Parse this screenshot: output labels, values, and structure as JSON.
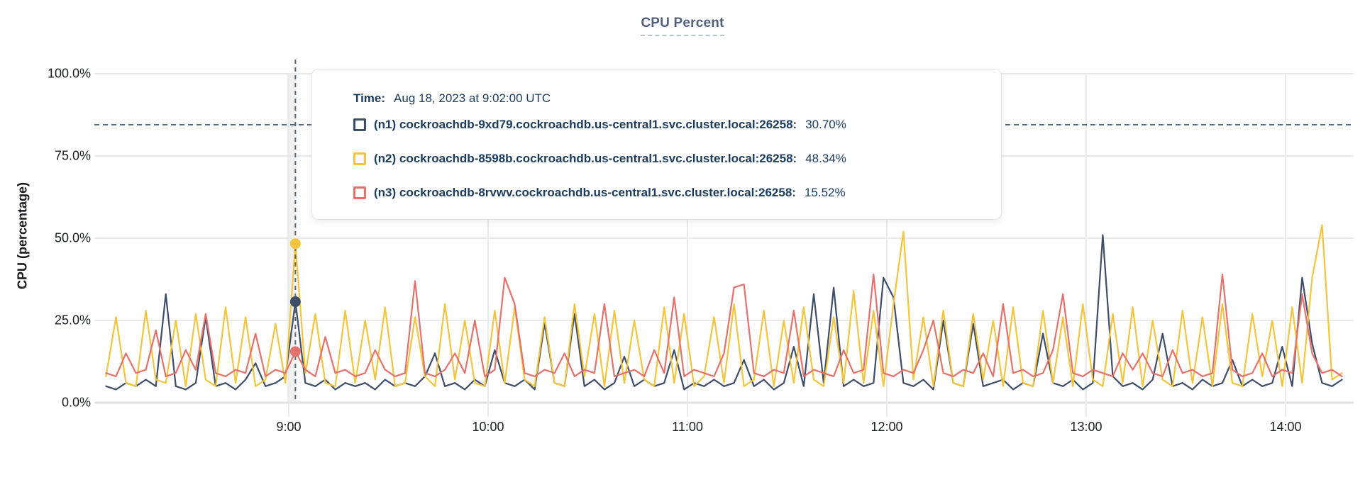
{
  "title": "CPU Percent",
  "y_axis": {
    "label": "CPU (percentage)"
  },
  "tooltip": {
    "time_label": "Time:",
    "time_value": "Aug 18, 2023 at 9:02:00 UTC",
    "series": [
      {
        "label": "(n1) cockroachdb-9xd79.cockroachdb.us-central1.svc.cluster.local:26258:",
        "value": "30.70%",
        "color": "#3e4e68"
      },
      {
        "label": "(n2) cockroachdb-8598b.cockroachdb.us-central1.svc.cluster.local:26258:",
        "value": "48.34%",
        "color": "#f2c53d"
      },
      {
        "label": "(n3) cockroachdb-8rvwv.cockroachdb.us-central1.svc.cluster.local:26258:",
        "value": "15.52%",
        "color": "#e5716c"
      }
    ]
  },
  "colors": {
    "grid": "#eaeaec",
    "axis_line": "#e2e2e4",
    "dashed_guides": "#55677a",
    "hover_band": "#e6e6e8",
    "title": "#51617d",
    "tooltip_text": "#1c3c60"
  },
  "chart_data": {
    "type": "line",
    "title": "CPU Percent",
    "ylabel": "CPU (percentage)",
    "ylim": [
      0,
      100
    ],
    "grid": true,
    "y_ticks": [
      {
        "label": "100.0%",
        "value": 100
      },
      {
        "label": "75.0%",
        "value": 75
      },
      {
        "label": "50.0%",
        "value": 50
      },
      {
        "label": "25.0%",
        "value": 25
      },
      {
        "label": "0.0%",
        "value": 0
      }
    ],
    "x_ticks": [
      {
        "label": "9:00",
        "min": 540
      },
      {
        "label": "10:00",
        "min": 600
      },
      {
        "label": "11:00",
        "min": 660
      },
      {
        "label": "12:00",
        "min": 720
      },
      {
        "label": "13:00",
        "min": 780
      },
      {
        "label": "14:00",
        "min": 840
      }
    ],
    "x_start_min": 485,
    "x_step_min": 3,
    "threshold_percent": 84.5,
    "crosshair": {
      "min": 542,
      "time": "9:02",
      "values": [
        30.7,
        48.34,
        15.52
      ]
    },
    "series": [
      {
        "name": "n1",
        "color": "#3e4e68",
        "values": [
          5,
          4,
          6,
          5,
          7,
          5,
          33,
          5,
          4,
          6,
          26,
          5,
          6,
          4,
          7,
          12,
          5,
          6,
          8,
          30.7,
          6,
          5,
          7,
          4,
          6,
          5,
          6,
          4,
          7,
          5,
          6,
          5,
          8,
          15,
          5,
          6,
          4,
          7,
          5,
          16,
          6,
          5,
          7,
          4,
          24,
          6,
          5,
          27,
          5,
          7,
          4,
          6,
          14,
          5,
          7,
          5,
          6,
          16,
          4,
          6,
          5,
          7,
          5,
          6,
          13,
          5,
          7,
          4,
          6,
          17,
          5,
          33,
          6,
          35,
          5,
          7,
          5,
          6,
          38,
          32,
          6,
          5,
          7,
          4,
          25,
          6,
          5,
          24,
          5,
          6,
          7,
          4,
          6,
          5,
          21,
          6,
          5,
          7,
          4,
          6,
          51,
          8,
          5,
          6,
          4,
          7,
          21,
          5,
          6,
          4,
          7,
          5,
          6,
          13,
          5,
          7,
          5,
          6,
          17,
          5,
          38,
          18,
          6,
          5,
          7
        ]
      },
      {
        "name": "n2",
        "color": "#f2c53d",
        "values": [
          8,
          26,
          6,
          5,
          28,
          7,
          6,
          25,
          5,
          27,
          7,
          5,
          29,
          6,
          26,
          5,
          7,
          24,
          6,
          48.34,
          9,
          27,
          6,
          5,
          28,
          6,
          25,
          7,
          29,
          5,
          6,
          26,
          8,
          5,
          30,
          7,
          25,
          6,
          5,
          28,
          6,
          29,
          7,
          5,
          26,
          6,
          5,
          30,
          8,
          27,
          5,
          28,
          6,
          25,
          7,
          5,
          29,
          6,
          27,
          5,
          8,
          26,
          6,
          30,
          5,
          7,
          28,
          5,
          25,
          6,
          29,
          7,
          5,
          26,
          6,
          34,
          6,
          28,
          5,
          30,
          52,
          7,
          26,
          5,
          28,
          6,
          5,
          27,
          7,
          25,
          5,
          29,
          6,
          5,
          28,
          6,
          26,
          5,
          30,
          7,
          5,
          27,
          6,
          29,
          5,
          25,
          7,
          5,
          28,
          6,
          26,
          5,
          30,
          6,
          5,
          27,
          8,
          25,
          5,
          29,
          6,
          38,
          54,
          7,
          9
        ]
      },
      {
        "name": "n3",
        "color": "#e5716c",
        "values": [
          9,
          8,
          15,
          9,
          10,
          22,
          8,
          9,
          16,
          10,
          27,
          9,
          8,
          10,
          9,
          21,
          8,
          10,
          9,
          15.52,
          10,
          8,
          20,
          9,
          10,
          8,
          9,
          16,
          10,
          8,
          9,
          37,
          9,
          8,
          10,
          15,
          9,
          25,
          8,
          10,
          38,
          30,
          9,
          8,
          10,
          9,
          15,
          8,
          10,
          9,
          30,
          8,
          9,
          10,
          8,
          16,
          9,
          32,
          8,
          10,
          9,
          8,
          15,
          35,
          36,
          9,
          8,
          10,
          9,
          28,
          8,
          10,
          9,
          8,
          16,
          9,
          10,
          39,
          9,
          8,
          10,
          9,
          16,
          25,
          9,
          8,
          10,
          9,
          15,
          8,
          30,
          9,
          10,
          8,
          9,
          16,
          33,
          9,
          8,
          10,
          9,
          8,
          15,
          10,
          15,
          9,
          8,
          16,
          9,
          10,
          8,
          9,
          39,
          10,
          8,
          9,
          15,
          8,
          10,
          9,
          33,
          15,
          9,
          10,
          8
        ]
      }
    ]
  }
}
